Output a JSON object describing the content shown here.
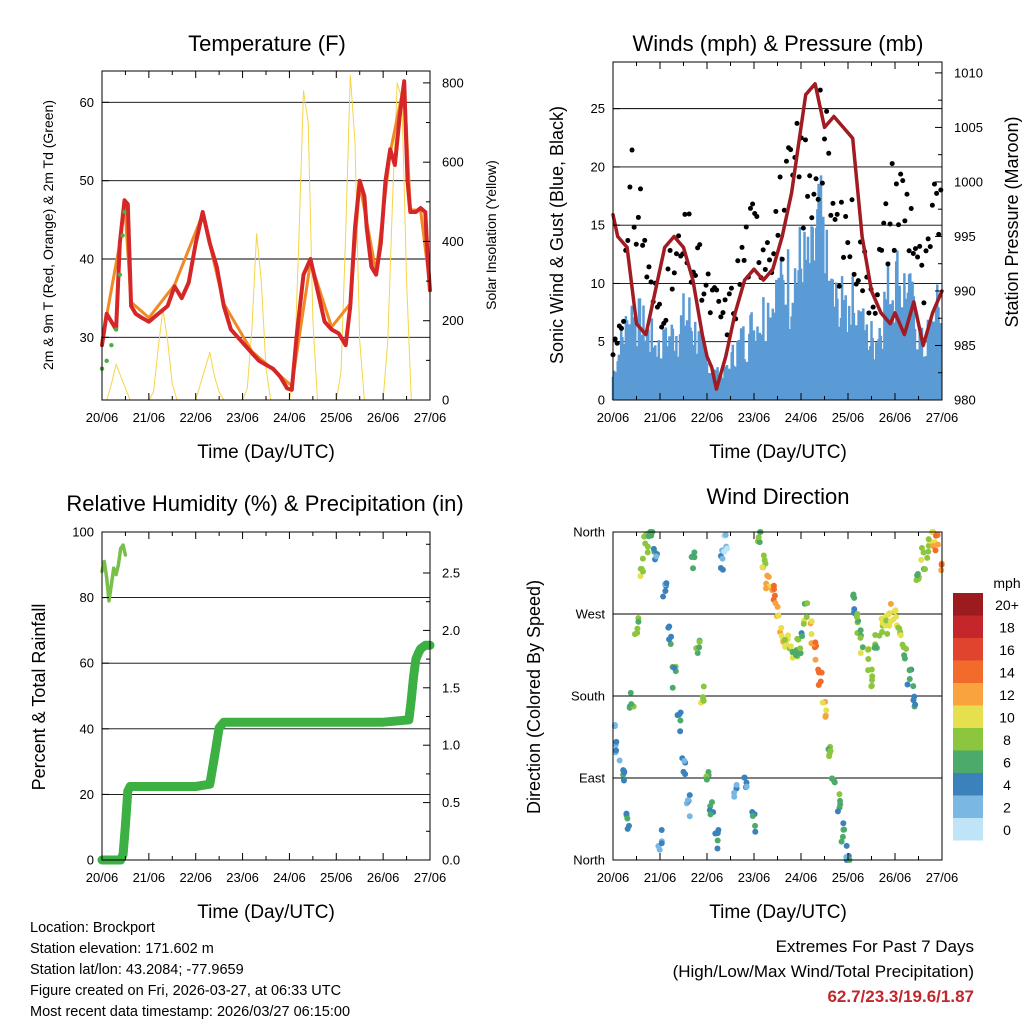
{
  "charts": {
    "temp": {
      "title": "Temperature (F)",
      "ylabel": "2m & 9m T (Red, Orange) & 2m Td (Green)",
      "y2label": "Solar Insolation (Yellow)",
      "xlabel": "Time (Day/UTC)"
    },
    "wind": {
      "title": "Winds (mph) & Pressure (mb)",
      "ylabel": "Sonic Wind & Gust (Blue, Black)",
      "y2label": "Station Pressure (Maroon)",
      "xlabel": "Time (Day/UTC)"
    },
    "rh": {
      "title": "Relative Humidity (%) & Precipitation (in)",
      "ylabel": "Percent & Total Rainfall",
      "xlabel": "Time (Day/UTC)"
    },
    "dir": {
      "title": "Wind Direction",
      "ylabel": "Direction (Colored By Speed)",
      "xlabel": "Time (Day/UTC)",
      "legend_title": "mph"
    }
  },
  "footer": {
    "location": "Location: Brockport",
    "elevation": "Station elevation: 171.602 m",
    "latlon": "Station lat/lon: 43.2084; -77.9659",
    "created": "Figure created on Fri, 2026-03-27, at 06:33 UTC",
    "recent": "Most recent data timestamp: 2026/03/27 06:15:00"
  },
  "extremes": {
    "title": "Extremes For Past 7 Days",
    "subtitle": "(High/Low/Max Wind/Total Precipitation)",
    "values": "62.7/23.3/19.6/1.87"
  },
  "colors": {
    "temp_red": "#d62728",
    "temp_orange": "#f08a24",
    "dewpoint_green": "#4bb040",
    "solar_yellow": "#f5d547",
    "wind_blue": "#5b9bd5",
    "gust_black": "#000000",
    "pressure_maroon": "#a01c22",
    "rh_green": "#78c04a",
    "precip_green": "#3cb043",
    "extremes_red": "#c1272d"
  },
  "chart_data": [
    {
      "id": "temp",
      "type": "line",
      "title": "Temperature (F)",
      "xlabel": "Time (Day/UTC)",
      "ylabel": "2m & 9m T (Red, Orange) & 2m Td (Green)",
      "y2label": "Solar Insolation (Yellow)",
      "xlim": [
        0,
        7
      ],
      "ylim": [
        22,
        64
      ],
      "y2lim": [
        0,
        830
      ],
      "x_ticks": [
        "20/06",
        "21/06",
        "22/06",
        "23/06",
        "24/06",
        "25/06",
        "26/06",
        "27/06"
      ],
      "y_ticks": [
        30,
        40,
        50,
        60
      ],
      "y2_ticks": [
        0,
        200,
        400,
        600,
        800
      ],
      "grid": true,
      "series": [
        {
          "name": "2m T",
          "color": "#d62728",
          "x": [
            0,
            0.1,
            0.2,
            0.3,
            0.38,
            0.48,
            0.55,
            0.62,
            0.72,
            0.85,
            1.0,
            1.2,
            1.4,
            1.55,
            1.7,
            1.85,
            2.0,
            2.15,
            2.3,
            2.45,
            2.6,
            2.75,
            2.9,
            3.05,
            3.2,
            3.35,
            3.5,
            3.65,
            3.8,
            3.95,
            4.05,
            4.15,
            4.3,
            4.45,
            4.6,
            4.75,
            4.9,
            5.05,
            5.2,
            5.3,
            5.4,
            5.5,
            5.6,
            5.65,
            5.75,
            5.85,
            5.95,
            6.05,
            6.15,
            6.25,
            6.35,
            6.45,
            6.52,
            6.58,
            6.7,
            6.8,
            6.9,
            6.95,
            7.0
          ],
          "values": [
            29,
            33,
            32,
            31,
            42,
            47.5,
            47,
            34,
            33,
            32.5,
            32,
            33,
            34,
            36.5,
            35,
            37,
            42,
            46,
            42,
            39,
            34,
            31,
            30,
            29,
            28,
            27,
            26.5,
            26,
            25,
            23.5,
            23.3,
            30,
            38,
            40,
            36,
            32,
            31,
            30.5,
            29,
            34,
            44,
            50,
            48,
            44,
            39,
            38,
            42,
            50,
            54,
            52,
            58,
            62.7,
            50,
            46,
            46,
            46.5,
            46,
            40,
            36
          ]
        },
        {
          "name": "9m T",
          "color": "#f08a24",
          "x": [
            0,
            0.38,
            0.48,
            0.62,
            1.0,
            1.55,
            2.15,
            2.6,
            3.2,
            4.05,
            4.45,
            4.9,
            5.3,
            5.5,
            5.85,
            6.15,
            6.45,
            6.58,
            6.8,
            7.0
          ],
          "values": [
            29.5,
            42,
            47.3,
            34.5,
            32.5,
            36.7,
            45.7,
            34.3,
            28.2,
            23.8,
            39.6,
            31.3,
            34.3,
            49.6,
            38.3,
            53.6,
            62.4,
            46.3,
            46.2,
            36.5
          ]
        },
        {
          "name": "2m Td",
          "color": "#4bb040",
          "x": [
            0,
            0.1,
            0.2,
            0.3,
            0.38,
            0.44,
            0.48
          ],
          "values": [
            26,
            27,
            29,
            31,
            38,
            43,
            46
          ]
        },
        {
          "name": "Solar Insolation",
          "color": "#f5d547",
          "axis": "y2",
          "x": [
            0,
            0.1,
            0.2,
            0.3,
            0.4,
            0.5,
            0.6,
            0.9,
            1.0,
            1.1,
            1.2,
            1.3,
            1.4,
            1.5,
            1.6,
            1.7,
            1.9,
            2.0,
            2.1,
            2.2,
            2.3,
            2.4,
            2.5,
            2.6,
            2.9,
            3.0,
            3.1,
            3.2,
            3.3,
            3.4,
            3.5,
            3.6,
            3.9,
            4.0,
            4.1,
            4.2,
            4.3,
            4.4,
            4.5,
            4.6,
            4.9,
            5.0,
            5.1,
            5.2,
            5.3,
            5.4,
            5.5,
            5.6,
            5.9,
            6.0,
            6.1,
            6.2,
            6.3,
            6.4,
            6.5,
            6.6,
            7.0
          ],
          "values": [
            0,
            0,
            40,
            90,
            60,
            30,
            0,
            0,
            0,
            20,
            130,
            230,
            150,
            40,
            0,
            0,
            0,
            0,
            40,
            80,
            120,
            60,
            20,
            0,
            0,
            0,
            30,
            180,
            420,
            300,
            80,
            0,
            0,
            0,
            60,
            400,
            780,
            700,
            200,
            0,
            0,
            0,
            70,
            420,
            820,
            650,
            150,
            0,
            0,
            0,
            150,
            500,
            800,
            760,
            300,
            0,
            0
          ]
        }
      ]
    },
    {
      "id": "wind",
      "type": "scatter",
      "title": "Winds (mph) & Pressure (mb)",
      "xlabel": "Time (Day/UTC)",
      "ylabel": "Sonic Wind & Gust (Blue, Black)",
      "y2label": "Station Pressure (Maroon)",
      "xlim": [
        0,
        7
      ],
      "ylim": [
        0,
        29
      ],
      "y2lim": [
        980,
        1011
      ],
      "x_ticks": [
        "20/06",
        "21/06",
        "22/06",
        "23/06",
        "24/06",
        "25/06",
        "26/06",
        "27/06"
      ],
      "y_ticks": [
        0,
        5,
        10,
        15,
        20,
        25
      ],
      "y2_ticks": [
        980,
        985,
        990,
        995,
        1000,
        1005,
        1010
      ],
      "grid": true,
      "series": [
        {
          "name": "Sonic Wind",
          "color": "#5b9bd5",
          "x": [
            0,
            0.2,
            0.4,
            0.6,
            0.8,
            1.0,
            1.2,
            1.4,
            1.6,
            1.8,
            2.0,
            2.2,
            2.4,
            2.6,
            2.8,
            3.0,
            3.2,
            3.4,
            3.6,
            3.8,
            4.0,
            4.2,
            4.4,
            4.6,
            4.8,
            5.0,
            5.2,
            5.4,
            5.6,
            5.8,
            6.0,
            6.2,
            6.4,
            6.6,
            6.8,
            7.0
          ],
          "values": [
            2,
            5,
            7,
            6,
            5,
            4,
            5,
            6,
            7,
            5,
            3,
            2,
            2,
            4,
            5,
            6,
            7,
            8,
            9,
            10,
            11,
            10,
            14,
            9,
            7,
            8,
            7,
            5,
            5,
            8,
            10,
            9,
            7,
            4,
            6,
            8
          ]
        },
        {
          "name": "Gust",
          "color": "#000000",
          "x": [
            0,
            0.2,
            0.4,
            0.6,
            0.8,
            1.0,
            1.2,
            1.4,
            1.6,
            1.8,
            2.0,
            2.2,
            2.4,
            2.6,
            2.8,
            3.0,
            3.2,
            3.4,
            3.6,
            3.8,
            4.0,
            4.2,
            4.4,
            4.6,
            4.8,
            5.0,
            5.2,
            5.4,
            5.6,
            5.8,
            6.0,
            6.2,
            6.4,
            6.6,
            6.8,
            7.0
          ],
          "values": [
            4,
            8,
            17,
            16,
            9,
            8,
            10,
            12,
            13,
            11,
            9,
            8,
            7,
            9,
            13,
            14,
            14,
            15,
            16,
            18,
            20,
            17,
            25,
            18,
            13,
            15,
            13,
            10,
            10,
            14,
            18,
            17,
            15,
            9,
            14,
            19.6
          ]
        },
        {
          "name": "Station Pressure",
          "color": "#a01c22",
          "axis": "y2",
          "x": [
            0,
            0.1,
            0.3,
            0.5,
            0.7,
            0.9,
            1.1,
            1.3,
            1.5,
            1.7,
            1.9,
            2.0,
            2.1,
            2.2,
            2.4,
            2.6,
            2.8,
            3.0,
            3.2,
            3.4,
            3.6,
            3.8,
            4.0,
            4.1,
            4.3,
            4.5,
            4.7,
            4.9,
            5.1,
            5.3,
            5.5,
            5.7,
            5.9,
            6.0,
            6.2,
            6.4,
            6.6,
            6.8,
            7.0
          ],
          "values": [
            997,
            995,
            994,
            987,
            986,
            990,
            994,
            995,
            994,
            991,
            986,
            984,
            983,
            981,
            984,
            988,
            991,
            992,
            991,
            992,
            995,
            999,
            1005,
            1008,
            1009,
            1005,
            1006,
            1005,
            1004,
            995,
            990,
            988,
            987,
            988,
            986,
            989,
            985,
            988,
            990
          ]
        }
      ]
    },
    {
      "id": "rh",
      "type": "line",
      "title": "Relative Humidity (%) & Precipitation (in)",
      "xlabel": "Time (Day/UTC)",
      "ylabel": "Percent & Total Rainfall",
      "xlim": [
        0,
        7
      ],
      "ylim": [
        0,
        100
      ],
      "y2lim": [
        0,
        2.857
      ],
      "x_ticks": [
        "20/06",
        "21/06",
        "22/06",
        "23/06",
        "24/06",
        "25/06",
        "26/06",
        "27/06"
      ],
      "y_ticks": [
        0,
        20,
        40,
        60,
        80,
        100
      ],
      "y2_ticks": [
        "0.0",
        "0.5",
        "1.0",
        "1.5",
        "2.0",
        "2.5"
      ],
      "grid": true,
      "series": [
        {
          "name": "Relative Humidity",
          "color": "#78c04a",
          "x": [
            0,
            0.05,
            0.1,
            0.15,
            0.2,
            0.25,
            0.3,
            0.35,
            0.4,
            0.45,
            0.5
          ],
          "values": [
            88,
            91,
            86,
            79,
            84,
            89,
            87,
            90,
            95,
            96,
            93
          ]
        },
        {
          "name": "Total Precipitation",
          "color": "#3cb043",
          "axis": "y2",
          "x": [
            0,
            0.4,
            0.45,
            0.5,
            0.55,
            0.6,
            1.0,
            2.0,
            2.3,
            2.4,
            2.5,
            2.6,
            3.0,
            4.0,
            5.0,
            6.0,
            6.55,
            6.6,
            6.65,
            6.7,
            6.75,
            6.8,
            6.9,
            7.0
          ],
          "values": [
            0,
            0,
            0.05,
            0.3,
            0.6,
            0.64,
            0.64,
            0.64,
            0.66,
            0.9,
            1.15,
            1.2,
            1.2,
            1.2,
            1.2,
            1.2,
            1.22,
            1.4,
            1.6,
            1.75,
            1.8,
            1.84,
            1.87,
            1.87
          ]
        }
      ]
    },
    {
      "id": "dir",
      "type": "scatter",
      "title": "Wind Direction",
      "xlabel": "Time (Day/UTC)",
      "ylabel": "Direction (Colored By Speed)",
      "xlim": [
        0,
        7
      ],
      "ylim": [
        0,
        360
      ],
      "x_ticks": [
        "20/06",
        "21/06",
        "22/06",
        "23/06",
        "24/06",
        "25/06",
        "26/06",
        "27/06"
      ],
      "y_ticks": [
        "North",
        "East",
        "South",
        "West",
        "North"
      ],
      "y_tick_values": [
        0,
        90,
        180,
        270,
        360
      ],
      "grid": true,
      "legend": {
        "title": "mph",
        "labels": [
          "20+",
          "18",
          "16",
          "14",
          "12",
          "10",
          "8",
          "6",
          "4",
          "2",
          "0"
        ],
        "colors": [
          "#9b1b1e",
          "#c3262b",
          "#e0432e",
          "#f26b2a",
          "#f9a33e",
          "#e6e04e",
          "#8cc63f",
          "#4cab6a",
          "#3b82bd",
          "#7ab8e3",
          "#bfe4f7"
        ]
      },
      "series": [
        {
          "name": "Direction",
          "x": [
            0,
            0.1,
            0.2,
            0.3,
            0.4,
            0.5,
            0.6,
            0.7,
            0.8,
            0.9,
            1.0,
            1.1,
            1.2,
            1.3,
            1.4,
            1.5,
            1.6,
            1.7,
            1.8,
            1.9,
            2.0,
            2.1,
            2.2,
            2.3,
            2.4,
            2.6,
            2.8,
            3.0,
            3.1,
            3.2,
            3.3,
            3.4,
            3.5,
            3.6,
            3.7,
            3.8,
            3.9,
            4.0,
            4.1,
            4.2,
            4.3,
            4.4,
            4.5,
            4.6,
            4.7,
            4.8,
            4.9,
            5.0,
            5.1,
            5.2,
            5.3,
            5.4,
            5.5,
            5.6,
            5.7,
            5.8,
            5.9,
            6.0,
            6.1,
            6.2,
            6.3,
            6.4,
            6.5,
            6.6,
            6.7,
            6.8,
            6.9,
            7.0
          ],
          "values": [
            150,
            120,
            90,
            40,
            180,
            260,
            320,
            350,
            360,
            340,
            20,
            300,
            250,
            200,
            150,
            100,
            60,
            330,
            240,
            180,
            95,
            60,
            20,
            330,
            350,
            70,
            80,
            40,
            360,
            330,
            310,
            290,
            270,
            250,
            240,
            230,
            235,
            240,
            270,
            250,
            230,
            200,
            170,
            120,
            90,
            60,
            30,
            10,
            280,
            260,
            240,
            220,
            200,
            240,
            255,
            260,
            270,
            265,
            250,
            230,
            200,
            180,
            320,
            330,
            340,
            355,
            350,
            330
          ],
          "speeds": [
            3,
            4,
            5,
            6,
            7,
            9,
            10,
            8,
            6,
            5,
            4,
            5,
            6,
            7,
            6,
            5,
            4,
            6,
            8,
            9,
            7,
            6,
            5,
            4,
            3,
            4,
            5,
            6,
            8,
            10,
            12,
            14,
            13,
            12,
            10,
            9,
            8,
            7,
            9,
            11,
            14,
            15,
            12,
            9,
            8,
            7,
            6,
            5,
            6,
            8,
            9,
            10,
            9,
            8,
            10,
            11,
            12,
            10,
            9,
            8,
            6,
            5,
            7,
            9,
            10,
            12,
            14,
            13
          ]
        }
      ]
    }
  ]
}
